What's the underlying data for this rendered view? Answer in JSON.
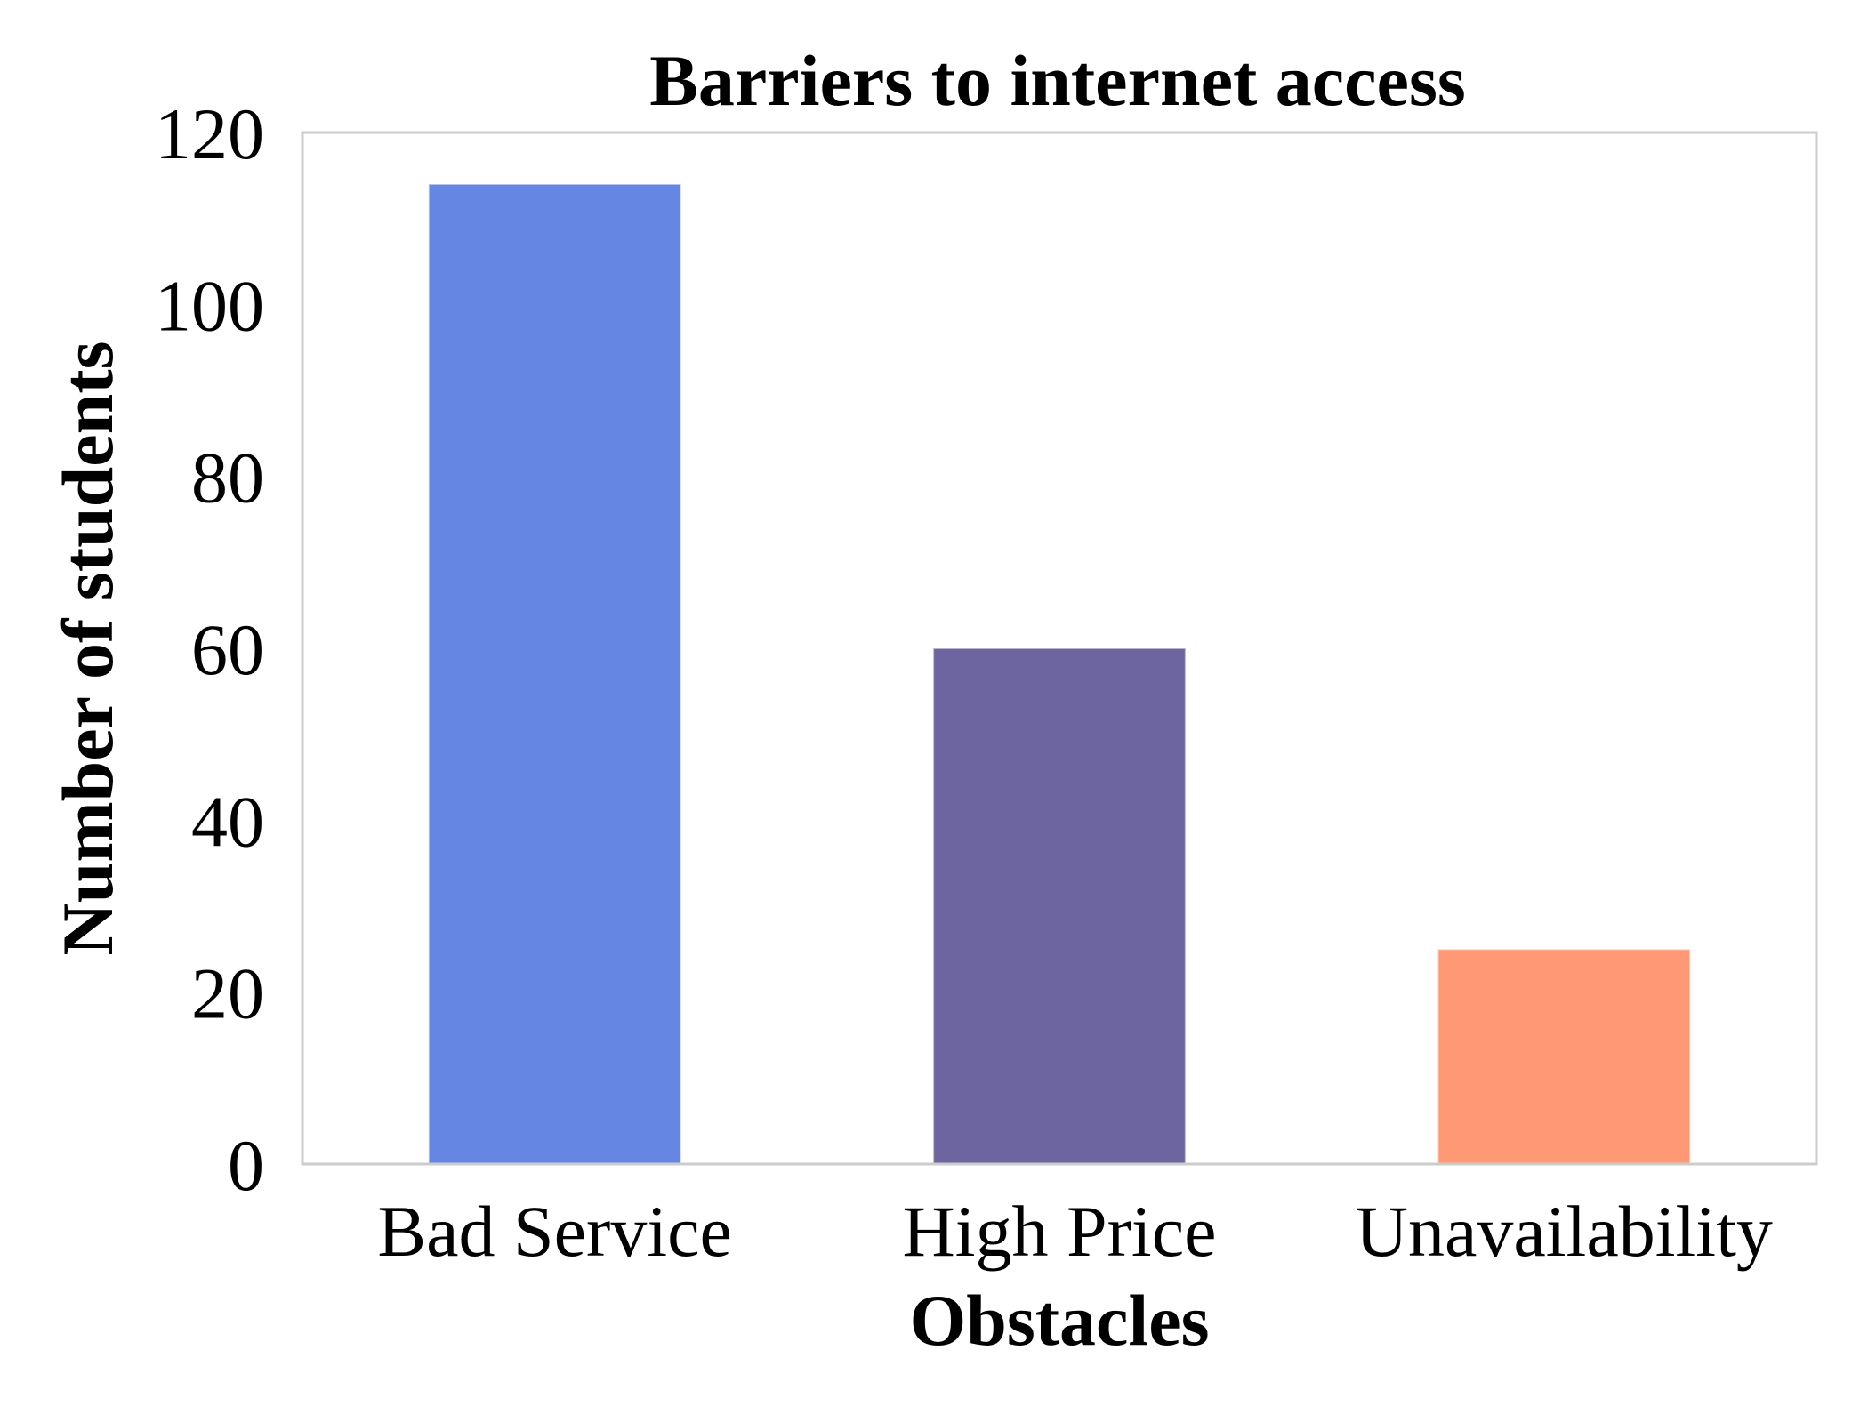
{
  "chart_data": {
    "type": "bar",
    "title": "Barriers to internet access",
    "xlabel": "Obstacles",
    "ylabel": "Number of students",
    "categories": [
      "Bad Service",
      "High Price",
      "Unavailability"
    ],
    "values": [
      114,
      60,
      25
    ],
    "colors": [
      "#6686E4",
      "#6D659F",
      "#FF9875"
    ],
    "ylim": [
      0,
      120
    ],
    "yticks": [
      0,
      20,
      40,
      60,
      80,
      100,
      120
    ],
    "grid": false,
    "frame_color": "#CCCCCC"
  }
}
